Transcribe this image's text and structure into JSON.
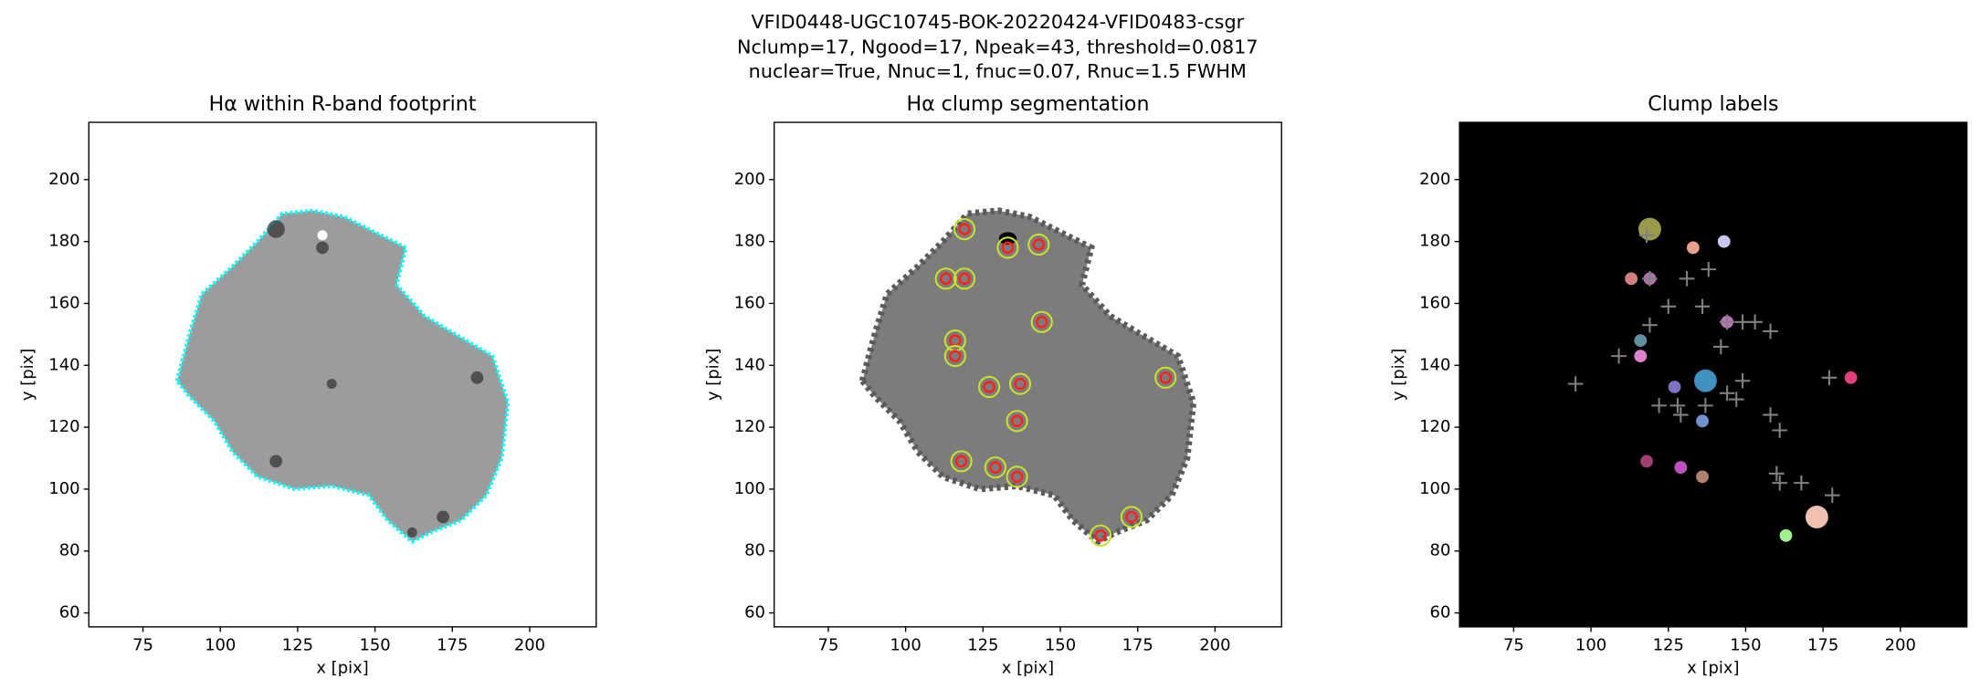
{
  "suptitle": [
    "VFID0448-UGC10745-BOK-20220424-VFID0483-csgr",
    "Nclump=17, Ngood=17, Npeak=43, threshold=0.0817",
    "nuclear=True, Nnuc=1, fnuc=0.07, Rnuc=1.5 FWHM"
  ],
  "chart_data": [
    {
      "type": "image",
      "title": "Hα within R-band footprint",
      "xlabel": "x [pix]",
      "ylabel": "y [pix]",
      "xlim": [
        57.5,
        221.5
      ],
      "ylim": [
        55.5,
        218.5
      ],
      "xticks": [
        75,
        100,
        125,
        150,
        175,
        200
      ],
      "yticks": [
        60,
        80,
        100,
        120,
        140,
        160,
        180,
        200
      ],
      "footprint_color": "#00ffff"
    },
    {
      "type": "image",
      "title": "Hα clump segmentation",
      "xlabel": "x [pix]",
      "ylabel": "y [pix]",
      "xlim": [
        57.5,
        221.5
      ],
      "ylim": [
        55.5,
        218.5
      ],
      "xticks": [
        75,
        100,
        125,
        150,
        175,
        200
      ],
      "yticks": [
        60,
        80,
        100,
        120,
        140,
        160,
        180,
        200
      ],
      "clump_x": [
        119,
        133,
        143,
        113,
        119,
        144,
        116,
        116,
        127,
        137,
        184,
        136,
        118,
        129,
        136,
        173,
        163
      ],
      "clump_y": [
        184,
        178,
        179,
        168,
        168,
        154,
        148,
        143,
        133,
        134,
        136,
        122,
        109,
        107,
        104,
        91,
        85
      ],
      "marker_color": "#ff2020"
    },
    {
      "type": "image",
      "title": "Clump labels",
      "xlabel": "x [pix]",
      "ylabel": "y [pix]",
      "xlim": [
        57.5,
        221.5
      ],
      "ylim": [
        55.5,
        218.5
      ],
      "xticks": [
        75,
        100,
        125,
        150,
        175,
        200
      ],
      "yticks": [
        60,
        80,
        100,
        120,
        140,
        160,
        180,
        200
      ],
      "clump_x": [
        119,
        133,
        143,
        113,
        119,
        144,
        116,
        116,
        127,
        137,
        184,
        136,
        118,
        129,
        136,
        173,
        163
      ],
      "clump_y": [
        184,
        178,
        180,
        168,
        168,
        154,
        148,
        143,
        133,
        135,
        136,
        122,
        109,
        107,
        104,
        91,
        85
      ],
      "clump_colors": [
        "#9a9a4a",
        "#e8a08a",
        "#c8c8f0",
        "#d08080",
        "#b070b0",
        "#c070c0",
        "#6090a0",
        "#e080d0",
        "#8070c0",
        "#4090c0",
        "#e04080",
        "#7090d0",
        "#a04070",
        "#c050c0",
        "#b08070",
        "#f0c0b0",
        "#a0f090"
      ],
      "peak_x": [
        95,
        109,
        118,
        119,
        125,
        119,
        131,
        138,
        136,
        144,
        149,
        153,
        158,
        122,
        128,
        129,
        137,
        144,
        147,
        149,
        158,
        161,
        160,
        161,
        168,
        178,
        177,
        142
      ],
      "peak_y": [
        134,
        143,
        182,
        168,
        159,
        153,
        168,
        171,
        159,
        154,
        154,
        154,
        151,
        127,
        127,
        124,
        127,
        131,
        129,
        135,
        124,
        119,
        105,
        102,
        102,
        98,
        136,
        146
      ],
      "peak_color": "#808080"
    }
  ]
}
